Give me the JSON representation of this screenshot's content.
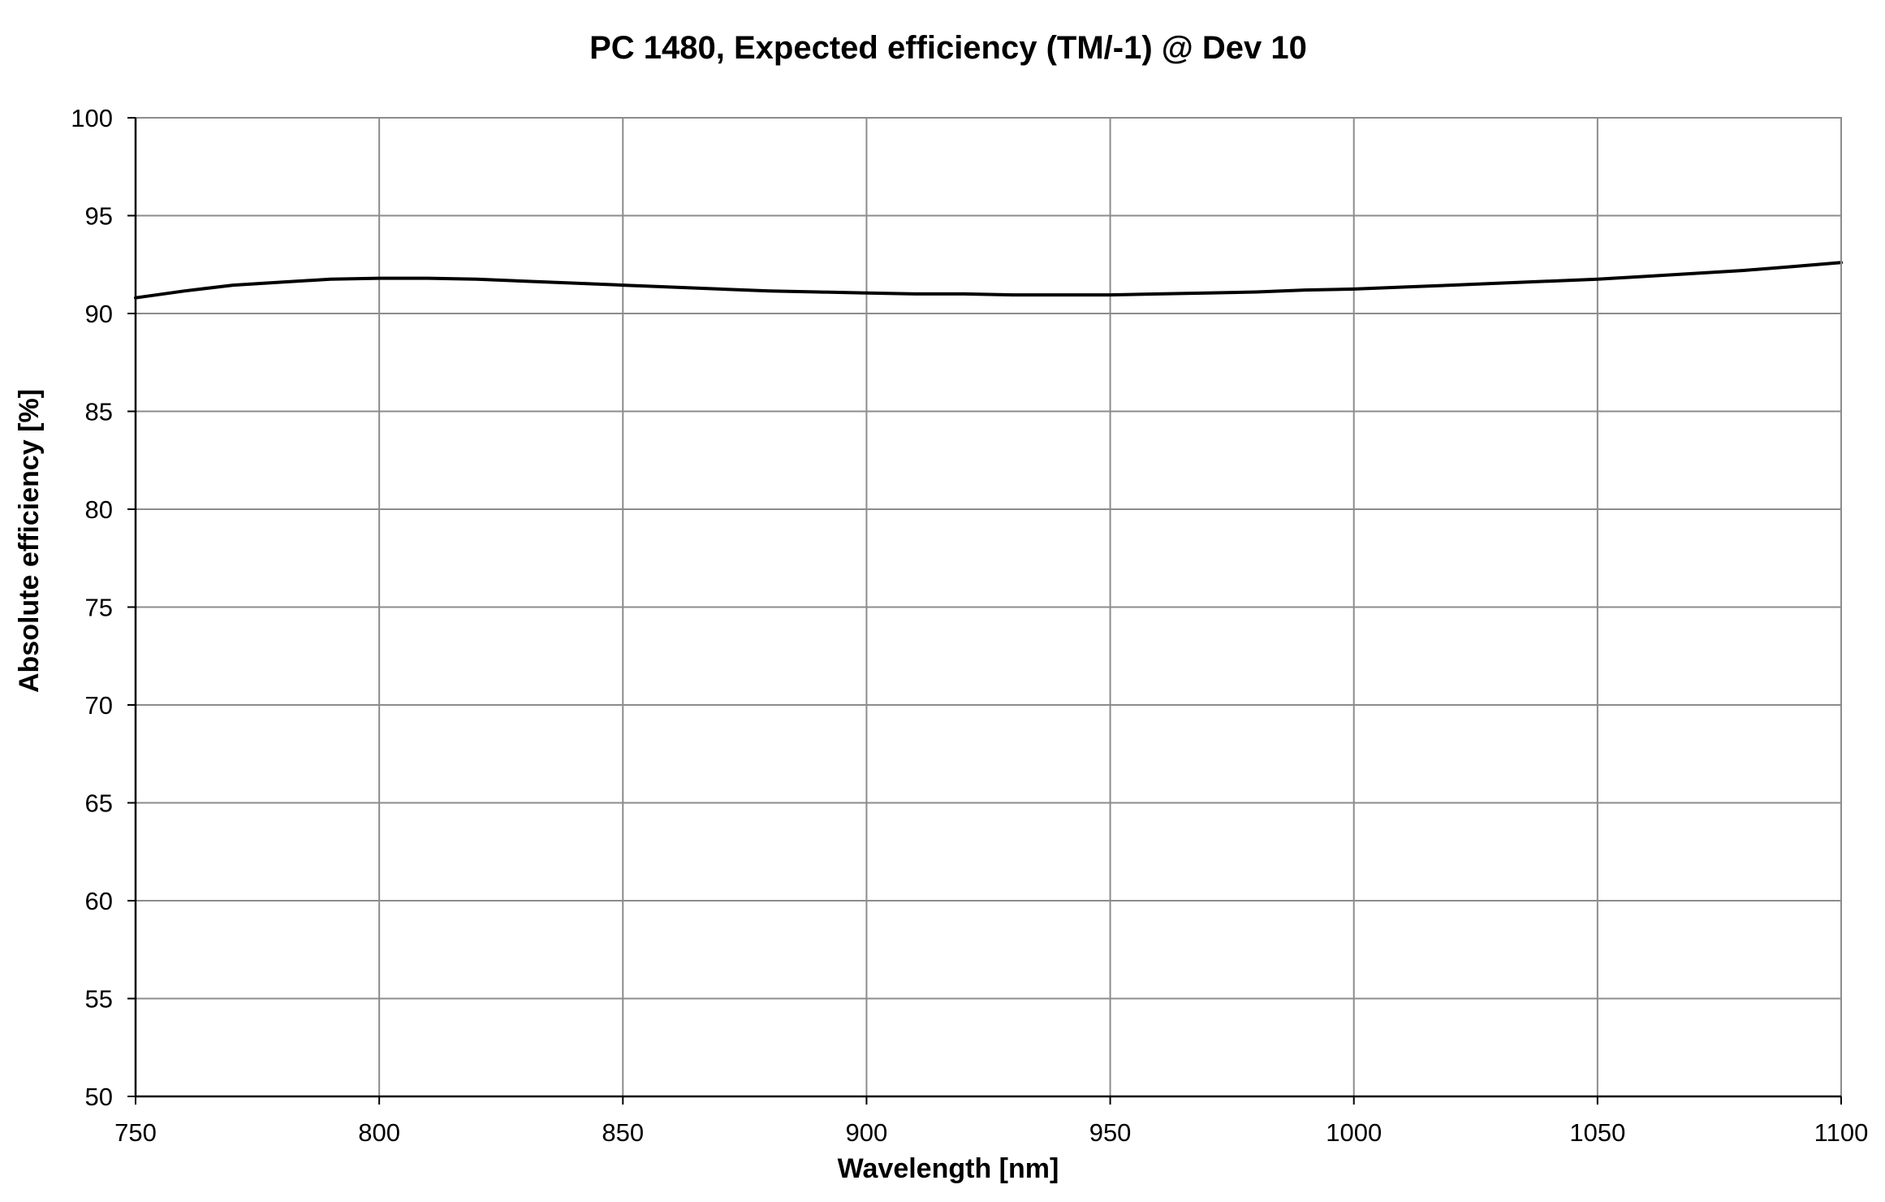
{
  "chart_data": {
    "type": "line",
    "title": "PC 1480, Expected efficiency (TM/-1) @ Dev 10",
    "xlabel": "Wavelength [nm]",
    "ylabel": "Absolute efficiency [%]",
    "xlim": [
      750,
      1100
    ],
    "ylim": [
      50,
      100
    ],
    "xticks": [
      750,
      800,
      850,
      900,
      950,
      1000,
      1050,
      1100
    ],
    "yticks": [
      50,
      55,
      60,
      65,
      70,
      75,
      80,
      85,
      90,
      95,
      100
    ],
    "grid": true,
    "colors": {
      "line": "#000000",
      "grid": "#8c8c8c",
      "axis": "#000000"
    },
    "series": [
      {
        "x": [
          750,
          760,
          770,
          780,
          790,
          800,
          810,
          820,
          830,
          840,
          850,
          860,
          870,
          880,
          890,
          900,
          910,
          920,
          930,
          940,
          950,
          960,
          970,
          980,
          990,
          1000,
          1010,
          1020,
          1030,
          1040,
          1050,
          1060,
          1070,
          1080,
          1090,
          1100
        ],
        "y": [
          90.8,
          91.15,
          91.45,
          91.6,
          91.75,
          91.8,
          91.8,
          91.75,
          91.65,
          91.55,
          91.45,
          91.35,
          91.25,
          91.15,
          91.1,
          91.05,
          91.0,
          91.0,
          90.95,
          90.95,
          90.95,
          91.0,
          91.05,
          91.1,
          91.2,
          91.25,
          91.35,
          91.45,
          91.55,
          91.65,
          91.75,
          91.9,
          92.05,
          92.2,
          92.4,
          92.6
        ]
      }
    ]
  }
}
